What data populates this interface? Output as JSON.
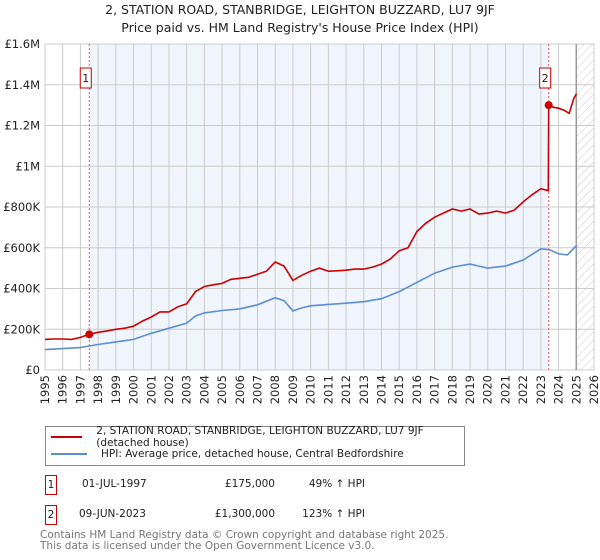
{
  "chart_data": {
    "type": "line",
    "title": "2, STATION ROAD, STANBRIDGE, LEIGHTON BUZZARD, LU7 9JF",
    "subtitle": "Price paid vs. HM Land Registry's House Price Index (HPI)",
    "xlim": [
      1995,
      2026
    ],
    "ylim": [
      0,
      1600000
    ],
    "x_ticks": [
      "1995",
      "1996",
      "1997",
      "1998",
      "1999",
      "2000",
      "2001",
      "2002",
      "2003",
      "2004",
      "2005",
      "2006",
      "2007",
      "2008",
      "2009",
      "2010",
      "2011",
      "2012",
      "2013",
      "2014",
      "2015",
      "2016",
      "2017",
      "2018",
      "2019",
      "2020",
      "2021",
      "2022",
      "2023",
      "2024",
      "2025",
      "2026"
    ],
    "y_ticks": [
      {
        "value": 0,
        "label": "£0"
      },
      {
        "value": 200000,
        "label": "£200K"
      },
      {
        "value": 400000,
        "label": "£400K"
      },
      {
        "value": 600000,
        "label": "£600K"
      },
      {
        "value": 800000,
        "label": "£800K"
      },
      {
        "value": 1000000,
        "label": "£1M"
      },
      {
        "value": 1200000,
        "label": "£1.2M"
      },
      {
        "value": 1400000,
        "label": "£1.4M"
      },
      {
        "value": 1600000,
        "label": "£1.6M"
      }
    ],
    "grid": true,
    "shaded_period": [
      1997.5,
      2023.44
    ],
    "forecast_hatch_from": 2025,
    "series": [
      {
        "name": "2, STATION ROAD, STANBRIDGE, LEIGHTON BUZZARD, LU7 9JF (detached house)",
        "color": "#cc0000",
        "x": [
          1995,
          1995.5,
          1996,
          1996.5,
          1997,
          1997.5,
          1998,
          1998.5,
          1999,
          1999.5,
          2000,
          2000.5,
          2001,
          2001.5,
          2002,
          2002.5,
          2003,
          2003.5,
          2004,
          2004.5,
          2005,
          2005.5,
          2006,
          2006.5,
          2007,
          2007.5,
          2008,
          2008.5,
          2009,
          2009.5,
          2010,
          2010.5,
          2011,
          2011.5,
          2012,
          2012.5,
          2013,
          2013.5,
          2014,
          2014.5,
          2015,
          2015.5,
          2016,
          2016.5,
          2017,
          2017.5,
          2018,
          2018.5,
          2019,
          2019.5,
          2020,
          2020.5,
          2021,
          2021.5,
          2022,
          2022.5,
          2023,
          2023.42,
          2023.44,
          2023.7,
          2024,
          2024.3,
          2024.6,
          2024.85,
          2025
        ],
        "y": [
          150000,
          152000,
          152000,
          150000,
          160000,
          175000,
          185000,
          192000,
          200000,
          205000,
          215000,
          240000,
          260000,
          285000,
          285000,
          310000,
          325000,
          385000,
          410000,
          418000,
          425000,
          445000,
          450000,
          455000,
          470000,
          485000,
          530000,
          510000,
          440000,
          465000,
          485000,
          500000,
          485000,
          487000,
          490000,
          495000,
          495000,
          505000,
          520000,
          545000,
          585000,
          600000,
          680000,
          720000,
          750000,
          770000,
          790000,
          780000,
          790000,
          765000,
          770000,
          780000,
          770000,
          785000,
          825000,
          860000,
          890000,
          880000,
          1300000,
          1290000,
          1285000,
          1275000,
          1260000,
          1330000,
          1355000
        ]
      },
      {
        "name": "HPI: Average price, detached house, Central Bedfordshire",
        "color": "#5b8fd4",
        "x": [
          1995,
          1996,
          1997,
          1997.5,
          1998,
          1999,
          2000,
          2001,
          2002,
          2003,
          2003.5,
          2004,
          2005,
          2006,
          2007,
          2008,
          2008.5,
          2009,
          2009.5,
          2010,
          2011,
          2012,
          2013,
          2014,
          2015,
          2016,
          2017,
          2018,
          2019,
          2020,
          2021,
          2022,
          2023,
          2023.5,
          2024,
          2024.5,
          2025
        ],
        "y": [
          100000,
          105000,
          110000,
          118000,
          125000,
          138000,
          150000,
          180000,
          205000,
          230000,
          265000,
          280000,
          292000,
          300000,
          320000,
          355000,
          340000,
          290000,
          305000,
          315000,
          322000,
          328000,
          335000,
          350000,
          385000,
          430000,
          475000,
          505000,
          520000,
          500000,
          510000,
          540000,
          595000,
          590000,
          570000,
          565000,
          610000
        ]
      }
    ],
    "sales": [
      {
        "id": "1",
        "x": 1997.5,
        "y": 175000,
        "date": "01-JUL-1997",
        "price": "£175,000",
        "hpi": "49% ↑ HPI"
      },
      {
        "id": "2",
        "x": 2023.44,
        "y": 1300000,
        "date": "09-JUN-2023",
        "price": "£1,300,000",
        "hpi": "123% ↑ HPI"
      }
    ]
  },
  "footer": {
    "line1": "Contains HM Land Registry data © Crown copyright and database right 2025.",
    "line2": "This data is licensed under the Open Government Licence v3.0."
  }
}
